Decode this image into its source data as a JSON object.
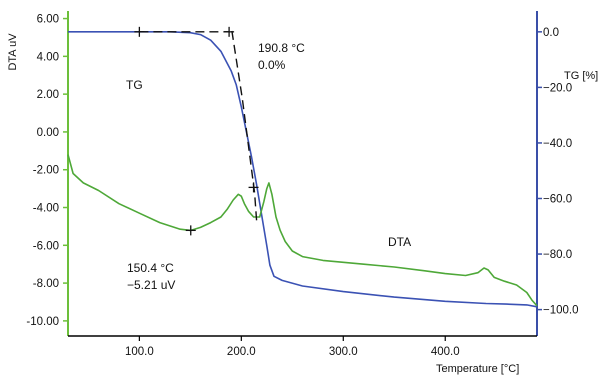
{
  "chart_data": {
    "type": "line",
    "x_axis": {
      "label": "Temperature [°C]",
      "range": [
        30,
        490
      ],
      "ticks": [
        100,
        200,
        300,
        400
      ],
      "tick_labels": [
        "100.0",
        "200.0",
        "300.0",
        "400.0"
      ]
    },
    "y_left": {
      "label": "DTA uV",
      "range": [
        -10.8,
        6.4
      ],
      "ticks": [
        6,
        4,
        2,
        0,
        -2,
        -4,
        -6,
        -8,
        -10
      ],
      "tick_labels": [
        "6.00",
        "4.00",
        "2.00",
        "0.00",
        "-2.00",
        "-4.00",
        "-6.00",
        "-8.00",
        "-10.00"
      ],
      "color": "#6cbf3a"
    },
    "y_right": {
      "label": "TG [%]",
      "range": [
        -109.5,
        7.5
      ],
      "ticks": [
        0,
        -20,
        -40,
        -60,
        -80,
        -100
      ],
      "tick_labels": [
        "0.0",
        "−20.0",
        "−40.0",
        "−60.0",
        "−80.0",
        "−100.0"
      ],
      "color": "#3a4fa8"
    },
    "series": [
      {
        "name": "TG",
        "axis": "right",
        "color": "#3b52b4",
        "points": [
          [
            30,
            0
          ],
          [
            60,
            0
          ],
          [
            100,
            0
          ],
          [
            130,
            0
          ],
          [
            150,
            -0.3
          ],
          [
            160,
            -1
          ],
          [
            170,
            -3
          ],
          [
            180,
            -7
          ],
          [
            190,
            -14
          ],
          [
            195,
            -19
          ],
          [
            200,
            -27
          ],
          [
            205,
            -36
          ],
          [
            210,
            -45
          ],
          [
            215,
            -55
          ],
          [
            220,
            -66
          ],
          [
            225,
            -77
          ],
          [
            228,
            -84
          ],
          [
            232,
            -88
          ],
          [
            240,
            -89.5
          ],
          [
            260,
            -91.5
          ],
          [
            300,
            -93.5
          ],
          [
            350,
            -95.5
          ],
          [
            400,
            -97
          ],
          [
            440,
            -97.8
          ],
          [
            460,
            -98
          ],
          [
            480,
            -98.3
          ],
          [
            490,
            -99
          ]
        ]
      },
      {
        "name": "DTA",
        "axis": "left",
        "color": "#4ea838",
        "points": [
          [
            30,
            -1.2
          ],
          [
            35,
            -2.2
          ],
          [
            45,
            -2.7
          ],
          [
            60,
            -3.1
          ],
          [
            80,
            -3.8
          ],
          [
            100,
            -4.3
          ],
          [
            120,
            -4.8
          ],
          [
            140,
            -5.15
          ],
          [
            150.4,
            -5.21
          ],
          [
            160,
            -5.05
          ],
          [
            170,
            -4.8
          ],
          [
            180,
            -4.5
          ],
          [
            186,
            -4.1
          ],
          [
            192,
            -3.6
          ],
          [
            197,
            -3.3
          ],
          [
            200,
            -3.4
          ],
          [
            203,
            -3.8
          ],
          [
            207,
            -4.2
          ],
          [
            212,
            -4.5
          ],
          [
            218,
            -4.5
          ],
          [
            222,
            -3.7
          ],
          [
            225,
            -3
          ],
          [
            227,
            -2.7
          ],
          [
            230,
            -3.3
          ],
          [
            234,
            -4.5
          ],
          [
            238,
            -5.2
          ],
          [
            243,
            -5.8
          ],
          [
            250,
            -6.3
          ],
          [
            260,
            -6.6
          ],
          [
            280,
            -6.8
          ],
          [
            300,
            -6.9
          ],
          [
            320,
            -7
          ],
          [
            350,
            -7.15
          ],
          [
            380,
            -7.35
          ],
          [
            400,
            -7.5
          ],
          [
            420,
            -7.6
          ],
          [
            432,
            -7.45
          ],
          [
            438,
            -7.2
          ],
          [
            442,
            -7.3
          ],
          [
            448,
            -7.7
          ],
          [
            458,
            -7.9
          ],
          [
            470,
            -8.1
          ],
          [
            480,
            -8.5
          ],
          [
            485,
            -8.9
          ],
          [
            490,
            -9.2
          ]
        ]
      }
    ],
    "construction_lines": [
      {
        "points": [
          [
            100,
            0
          ],
          [
            188,
            0
          ]
        ]
      },
      {
        "points": [
          [
            190.8,
            0.3
          ],
          [
            201,
            -24
          ],
          [
            213,
            -58
          ],
          [
            215,
            -68
          ]
        ]
      }
    ],
    "markers": [
      {
        "axis": "right",
        "x": 100,
        "y": 0
      },
      {
        "axis": "right",
        "x": 188,
        "y": 0
      },
      {
        "axis": "right",
        "x": 212,
        "y": -56
      },
      {
        "axis": "left",
        "x": 150.4,
        "y": -5.21
      }
    ],
    "annotations": [
      {
        "id": "tg-onset-temp",
        "text": "190.8 °C"
      },
      {
        "id": "tg-onset-loss",
        "text": "0.0%"
      },
      {
        "id": "tg-label",
        "text": "TG"
      },
      {
        "id": "dta-label",
        "text": "DTA"
      },
      {
        "id": "dta-min-temp",
        "text": "150.4 °C"
      },
      {
        "id": "dta-min-value",
        "text": "−5.21 uV"
      }
    ],
    "grid": false
  }
}
